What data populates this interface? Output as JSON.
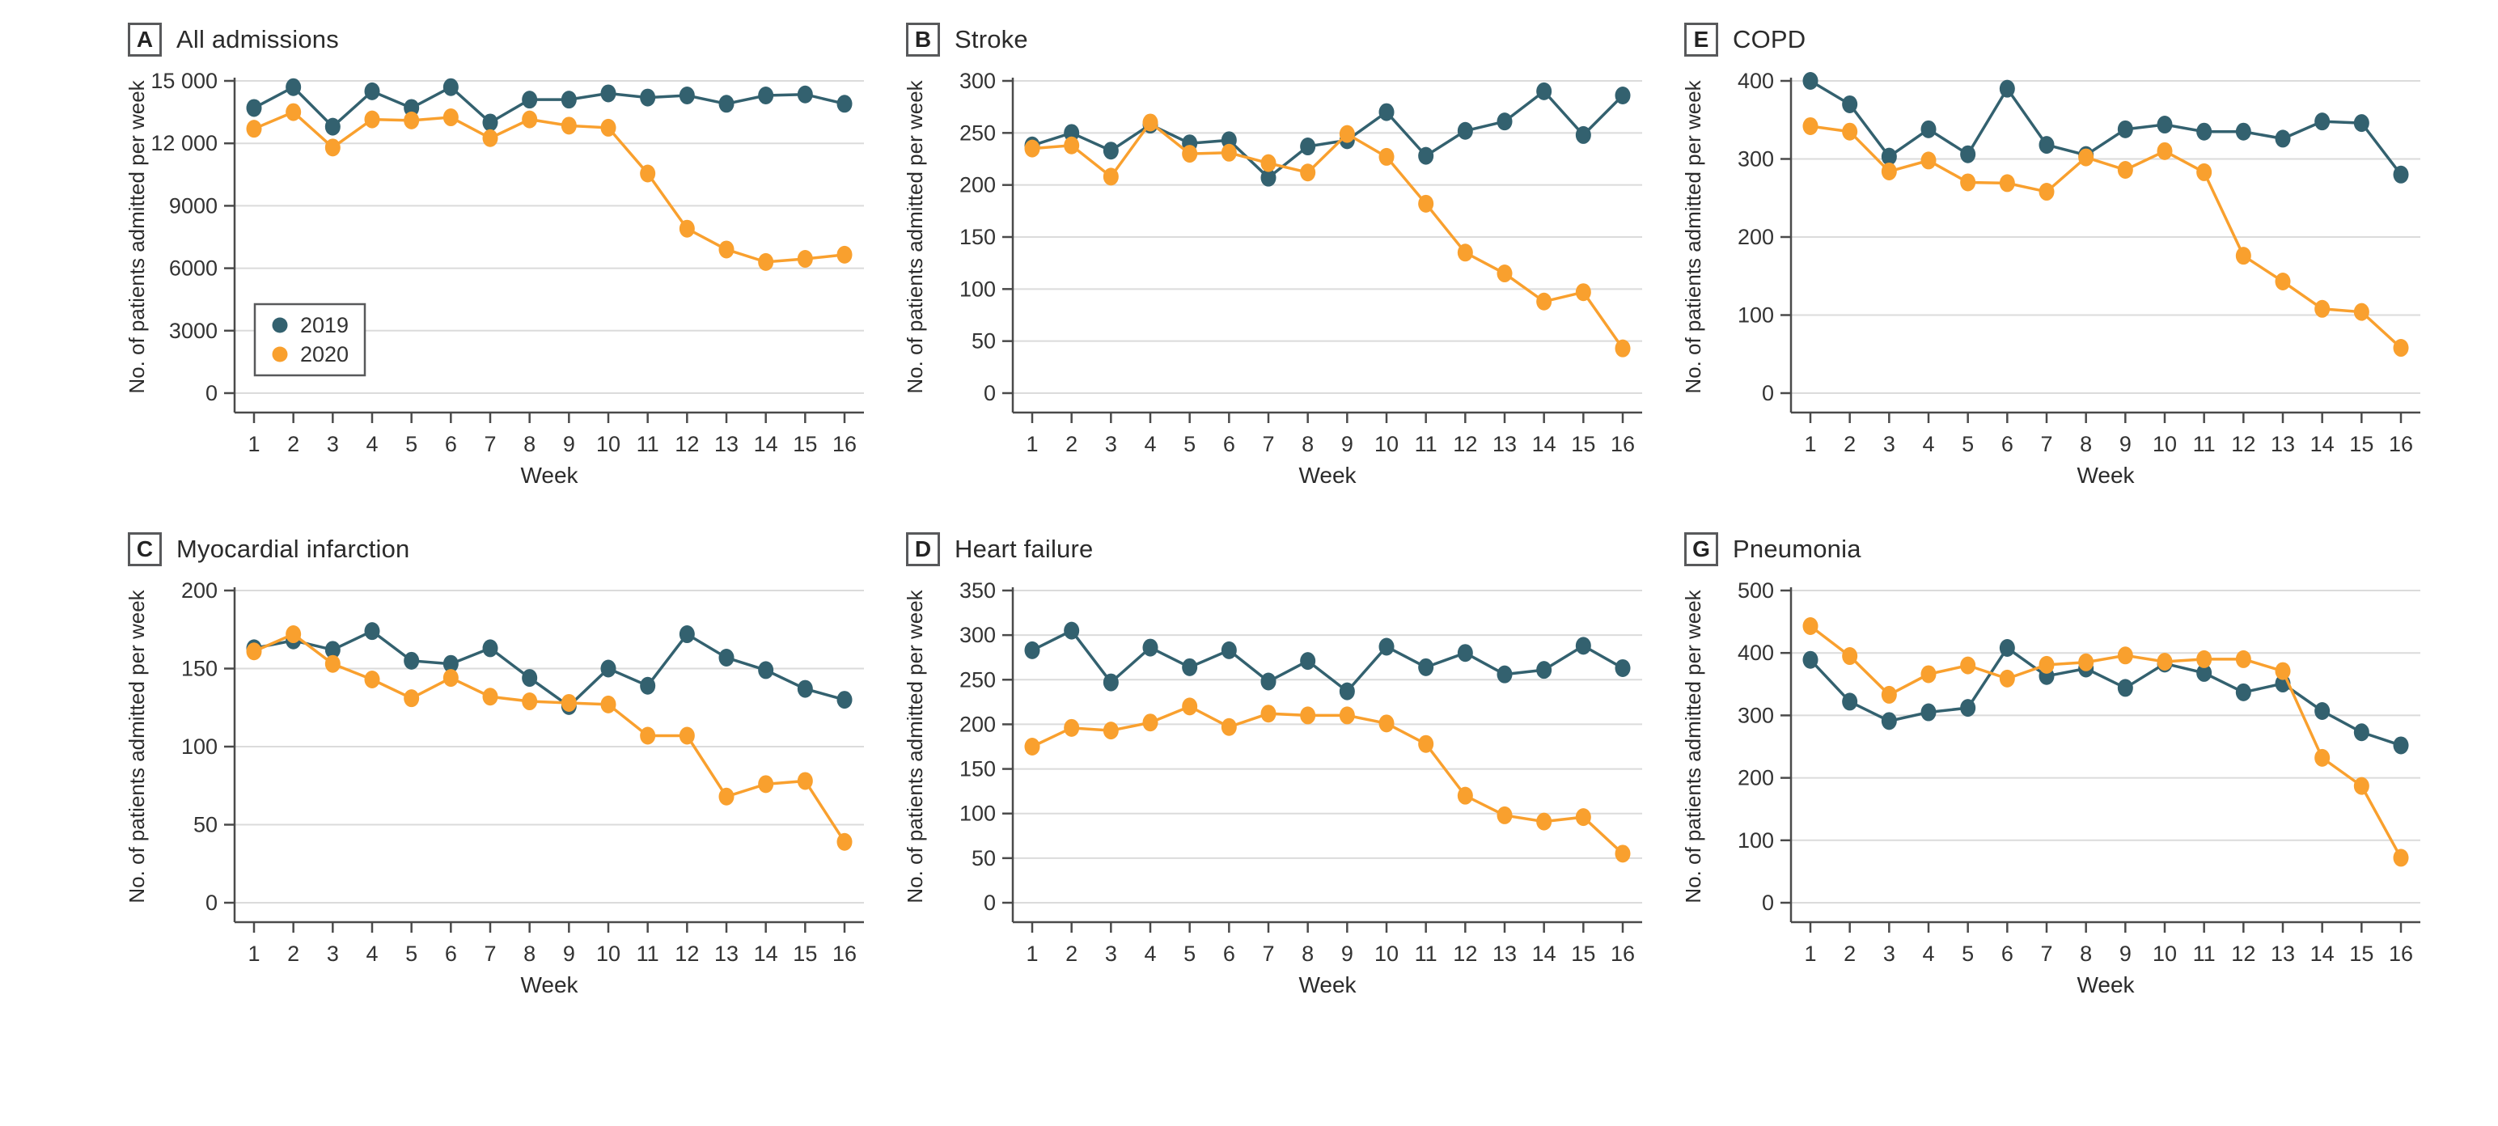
{
  "figure_type": "multi-panel line chart figure",
  "colors": {
    "series_2019": "#33616F",
    "series_2020": "#F9A02E",
    "grid": "#DBDBDB",
    "axis": "#4A4A4A",
    "tick_text": "#333333",
    "title_text": "#2B2B2B",
    "legend_border": "#58595B",
    "background": "#FFFFFF"
  },
  "legend": {
    "items": [
      {
        "label": "2019",
        "color": "#33616F"
      },
      {
        "label": "2020",
        "color": "#F9A02E"
      }
    ]
  },
  "chart_data": [
    {
      "type": "line",
      "panel_label": "A",
      "title": "All admissions",
      "xlabel": "Week",
      "ylabel": "No. of patients admitted per week",
      "x": [
        1,
        2,
        3,
        4,
        5,
        6,
        7,
        8,
        9,
        10,
        11,
        12,
        13,
        14,
        15,
        16
      ],
      "ylim": [
        0,
        15000
      ],
      "yticks": [
        0,
        3000,
        6000,
        9000,
        12000,
        15000
      ],
      "ytick_labels": [
        "0",
        "3000",
        "6000",
        "9000",
        "12 000",
        "15 000"
      ],
      "grid": true,
      "show_legend": true,
      "legend_position": "inside lower-left",
      "series": [
        {
          "name": "2019",
          "color": "#33616F",
          "values": [
            13700,
            14700,
            12800,
            14500,
            13700,
            14700,
            13000,
            14100,
            14100,
            14400,
            14200,
            14300,
            13900,
            14300,
            14350,
            13900
          ]
        },
        {
          "name": "2020",
          "color": "#F9A02E",
          "values": [
            12700,
            13500,
            11800,
            13150,
            13100,
            13250,
            12250,
            13150,
            12850,
            12750,
            10550,
            7900,
            6900,
            6300,
            6450,
            6650
          ]
        }
      ]
    },
    {
      "type": "line",
      "panel_label": "B",
      "title": "Stroke",
      "xlabel": "Week",
      "ylabel": "No. of patients admitted per week",
      "x": [
        1,
        2,
        3,
        4,
        5,
        6,
        7,
        8,
        9,
        10,
        11,
        12,
        13,
        14,
        15,
        16
      ],
      "ylim": [
        0,
        300
      ],
      "yticks": [
        0,
        50,
        100,
        150,
        200,
        250,
        300
      ],
      "ytick_labels": [
        "0",
        "50",
        "100",
        "150",
        "200",
        "250",
        "300"
      ],
      "grid": true,
      "show_legend": false,
      "series": [
        {
          "name": "2019",
          "color": "#33616F",
          "values": [
            238,
            250,
            233,
            258,
            240,
            243,
            207,
            237,
            243,
            270,
            228,
            252,
            261,
            290,
            248,
            286
          ]
        },
        {
          "name": "2020",
          "color": "#F9A02E",
          "values": [
            235,
            238,
            208,
            260,
            230,
            231,
            221,
            212,
            249,
            227,
            182,
            135,
            115,
            88,
            97,
            43
          ]
        }
      ]
    },
    {
      "type": "line",
      "panel_label": "E",
      "title": "COPD",
      "xlabel": "Week",
      "ylabel": "No. of patients admitted per week",
      "x": [
        1,
        2,
        3,
        4,
        5,
        6,
        7,
        8,
        9,
        10,
        11,
        12,
        13,
        14,
        15,
        16
      ],
      "ylim": [
        0,
        400
      ],
      "yticks": [
        0,
        100,
        200,
        300,
        400
      ],
      "ytick_labels": [
        "0",
        "100",
        "200",
        "300",
        "400"
      ],
      "grid": true,
      "show_legend": false,
      "series": [
        {
          "name": "2019",
          "color": "#33616F",
          "values": [
            400,
            370,
            303,
            338,
            306,
            390,
            318,
            305,
            338,
            344,
            335,
            335,
            326,
            348,
            346,
            280
          ]
        },
        {
          "name": "2020",
          "color": "#F9A02E",
          "values": [
            342,
            335,
            284,
            298,
            270,
            269,
            258,
            302,
            286,
            310,
            283,
            176,
            143,
            108,
            104,
            58
          ]
        }
      ]
    },
    {
      "type": "line",
      "panel_label": "C",
      "title": "Myocardial infarction",
      "xlabel": "Week",
      "ylabel": "No. of patients admitted per week",
      "x": [
        1,
        2,
        3,
        4,
        5,
        6,
        7,
        8,
        9,
        10,
        11,
        12,
        13,
        14,
        15,
        16
      ],
      "ylim": [
        0,
        200
      ],
      "yticks": [
        0,
        50,
        100,
        150,
        200
      ],
      "ytick_labels": [
        "0",
        "50",
        "100",
        "150",
        "200"
      ],
      "grid": true,
      "show_legend": false,
      "series": [
        {
          "name": "2019",
          "color": "#33616F",
          "values": [
            163,
            168,
            162,
            174,
            155,
            153,
            163,
            144,
            126,
            150,
            139,
            172,
            157,
            149,
            137,
            130
          ]
        },
        {
          "name": "2020",
          "color": "#F9A02E",
          "values": [
            161,
            172,
            153,
            143,
            131,
            144,
            132,
            129,
            128,
            127,
            107,
            107,
            68,
            76,
            78,
            39
          ]
        }
      ]
    },
    {
      "type": "line",
      "panel_label": "D",
      "title": "Heart failure",
      "xlabel": "Week",
      "ylabel": "No. of patients admitted per week",
      "x": [
        1,
        2,
        3,
        4,
        5,
        6,
        7,
        8,
        9,
        10,
        11,
        12,
        13,
        14,
        15,
        16
      ],
      "ylim": [
        0,
        350
      ],
      "yticks": [
        0,
        50,
        100,
        150,
        200,
        250,
        300,
        350
      ],
      "ytick_labels": [
        "0",
        "50",
        "100",
        "150",
        "200",
        "250",
        "300",
        "350"
      ],
      "grid": true,
      "show_legend": false,
      "series": [
        {
          "name": "2019",
          "color": "#33616F",
          "values": [
            283,
            305,
            247,
            286,
            264,
            283,
            248,
            271,
            237,
            287,
            264,
            280,
            256,
            261,
            288,
            263
          ]
        },
        {
          "name": "2020",
          "color": "#F9A02E",
          "values": [
            175,
            196,
            193,
            202,
            220,
            197,
            212,
            210,
            210,
            201,
            178,
            120,
            98,
            91,
            96,
            55
          ]
        }
      ]
    },
    {
      "type": "line",
      "panel_label": "G",
      "title": "Pneumonia",
      "xlabel": "Week",
      "ylabel": "No. of patients admitted per week",
      "x": [
        1,
        2,
        3,
        4,
        5,
        6,
        7,
        8,
        9,
        10,
        11,
        12,
        13,
        14,
        15,
        16
      ],
      "ylim": [
        0,
        500
      ],
      "yticks": [
        0,
        100,
        200,
        300,
        400,
        500
      ],
      "ytick_labels": [
        "0",
        "100",
        "200",
        "300",
        "400",
        "500"
      ],
      "grid": true,
      "show_legend": false,
      "series": [
        {
          "name": "2019",
          "color": "#33616F",
          "values": [
            389,
            322,
            291,
            305,
            312,
            408,
            363,
            375,
            344,
            383,
            368,
            337,
            351,
            307,
            273,
            252
          ]
        },
        {
          "name": "2020",
          "color": "#F9A02E",
          "values": [
            443,
            395,
            333,
            366,
            380,
            359,
            381,
            385,
            396,
            386,
            390,
            390,
            371,
            232,
            187,
            72
          ]
        }
      ]
    }
  ]
}
